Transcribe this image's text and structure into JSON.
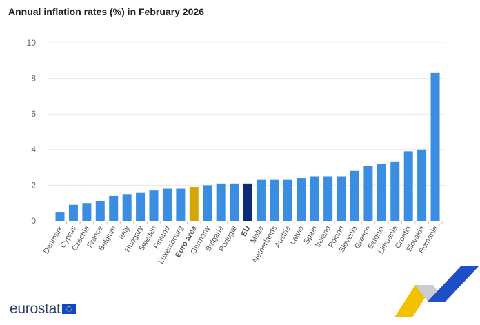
{
  "chart_data": {
    "type": "bar",
    "title": "Annual inflation rates (%) in February 2026",
    "xlabel": "",
    "ylabel": "",
    "ylim": [
      0,
      10
    ],
    "yticks": [
      0,
      2,
      4,
      6,
      8,
      10
    ],
    "grid": true,
    "categories": [
      "Denmark",
      "Cyprus",
      "Czechia",
      "France",
      "Belgium",
      "Italy",
      "Hungary",
      "Sweden",
      "Finland",
      "Luxembourg",
      "Euro area",
      "Germany",
      "Bulgaria",
      "Portugal",
      "EU",
      "Malta",
      "Netherlands",
      "Austria",
      "Latvia",
      "Spain",
      "Ireland",
      "Poland",
      "Slovenia",
      "Greece",
      "Estonia",
      "Lithuania",
      "Croatia",
      "Slovakia",
      "Romania"
    ],
    "values": [
      0.5,
      0.9,
      1.0,
      1.1,
      1.4,
      1.5,
      1.6,
      1.7,
      1.8,
      1.8,
      1.9,
      2.0,
      2.1,
      2.1,
      2.1,
      2.3,
      2.3,
      2.3,
      2.4,
      2.5,
      2.5,
      2.5,
      2.8,
      3.1,
      3.2,
      3.3,
      3.9,
      4.0,
      8.3
    ],
    "highlight": {
      "Euro area": "#d4a60a",
      "EU": "#0c2a78"
    },
    "bold_categories": [
      "Euro area",
      "EU"
    ],
    "colors": {
      "default": "#3a8de0",
      "grid": "#e4e8ee"
    }
  },
  "logo": {
    "text": "eurostat"
  }
}
